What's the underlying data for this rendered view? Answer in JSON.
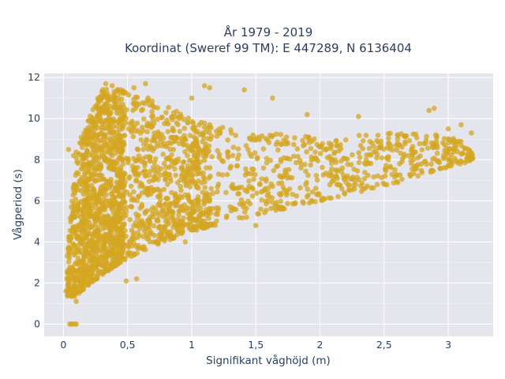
{
  "chart_data": {
    "type": "scatter",
    "title_line1": "År 1979 - 2019",
    "title_line2": "Koordinat (Sweref 99 TM): E 447289, N 6136404",
    "xlabel": "Signifikant våghöjd (m)",
    "ylabel": "Vågperiod (s)",
    "xlim": [
      -0.15,
      3.35
    ],
    "ylim": [
      -0.6,
      12.2
    ],
    "x_ticks": [
      0,
      0.5,
      1,
      1.5,
      2,
      2.5,
      3
    ],
    "x_tick_labels": [
      "0",
      "0,5",
      "1",
      "1,5",
      "2",
      "2,5",
      "3"
    ],
    "y_ticks": [
      0,
      2,
      4,
      6,
      8,
      10,
      12
    ],
    "y_tick_labels": [
      "0",
      "2",
      "4",
      "6",
      "8",
      "10",
      "12"
    ],
    "grid": true,
    "background_color": "#e5e5ee",
    "marker_color": "#d4a620",
    "marker_opacity": 0.75,
    "cloud_lower_envelope": [
      [
        0.03,
        1.3
      ],
      [
        0.1,
        1.3
      ],
      [
        0.2,
        1.9
      ],
      [
        0.3,
        2.4
      ],
      [
        0.5,
        3.2
      ],
      [
        0.7,
        3.8
      ],
      [
        1.0,
        4.5
      ],
      [
        1.5,
        5.3
      ],
      [
        2.0,
        6.0
      ],
      [
        2.5,
        6.7
      ],
      [
        3.0,
        7.6
      ],
      [
        3.2,
        8.0
      ]
    ],
    "cloud_upper_envelope": [
      [
        0.03,
        3.5
      ],
      [
        0.1,
        8.5
      ],
      [
        0.2,
        10.0
      ],
      [
        0.3,
        11.5
      ],
      [
        0.6,
        11.3
      ],
      [
        0.8,
        10.6
      ],
      [
        1.0,
        10.0
      ],
      [
        1.5,
        9.3
      ],
      [
        2.0,
        9.2
      ],
      [
        2.5,
        9.3
      ],
      [
        3.0,
        9.2
      ],
      [
        3.2,
        8.6
      ]
    ],
    "sparse_points": [
      {
        "x": 0.33,
        "y": 11.7
      },
      {
        "x": 0.38,
        "y": 11.6
      },
      {
        "x": 0.64,
        "y": 11.7
      },
      {
        "x": 0.55,
        "y": 11.5
      },
      {
        "x": 1.1,
        "y": 11.6
      },
      {
        "x": 1.14,
        "y": 11.5
      },
      {
        "x": 1.0,
        "y": 11.0
      },
      {
        "x": 1.41,
        "y": 11.4
      },
      {
        "x": 1.63,
        "y": 11.0
      },
      {
        "x": 1.9,
        "y": 10.2
      },
      {
        "x": 2.3,
        "y": 10.1
      },
      {
        "x": 2.85,
        "y": 10.4
      },
      {
        "x": 2.89,
        "y": 10.5
      },
      {
        "x": 3.0,
        "y": 9.5
      },
      {
        "x": 3.18,
        "y": 9.3
      },
      {
        "x": 3.1,
        "y": 9.7
      },
      {
        "x": 0.05,
        "y": 0.0
      },
      {
        "x": 0.07,
        "y": 0.0
      },
      {
        "x": 0.09,
        "y": 0.0
      },
      {
        "x": 0.1,
        "y": 0.0
      },
      {
        "x": 0.06,
        "y": 0.0
      },
      {
        "x": 0.49,
        "y": 2.1
      },
      {
        "x": 0.57,
        "y": 2.2
      },
      {
        "x": 0.1,
        "y": 1.1
      },
      {
        "x": 0.02,
        "y": 1.6
      },
      {
        "x": 0.04,
        "y": 8.5
      },
      {
        "x": 0.08,
        "y": 8.2
      },
      {
        "x": 1.5,
        "y": 4.8
      },
      {
        "x": 0.95,
        "y": 4.0
      }
    ]
  }
}
